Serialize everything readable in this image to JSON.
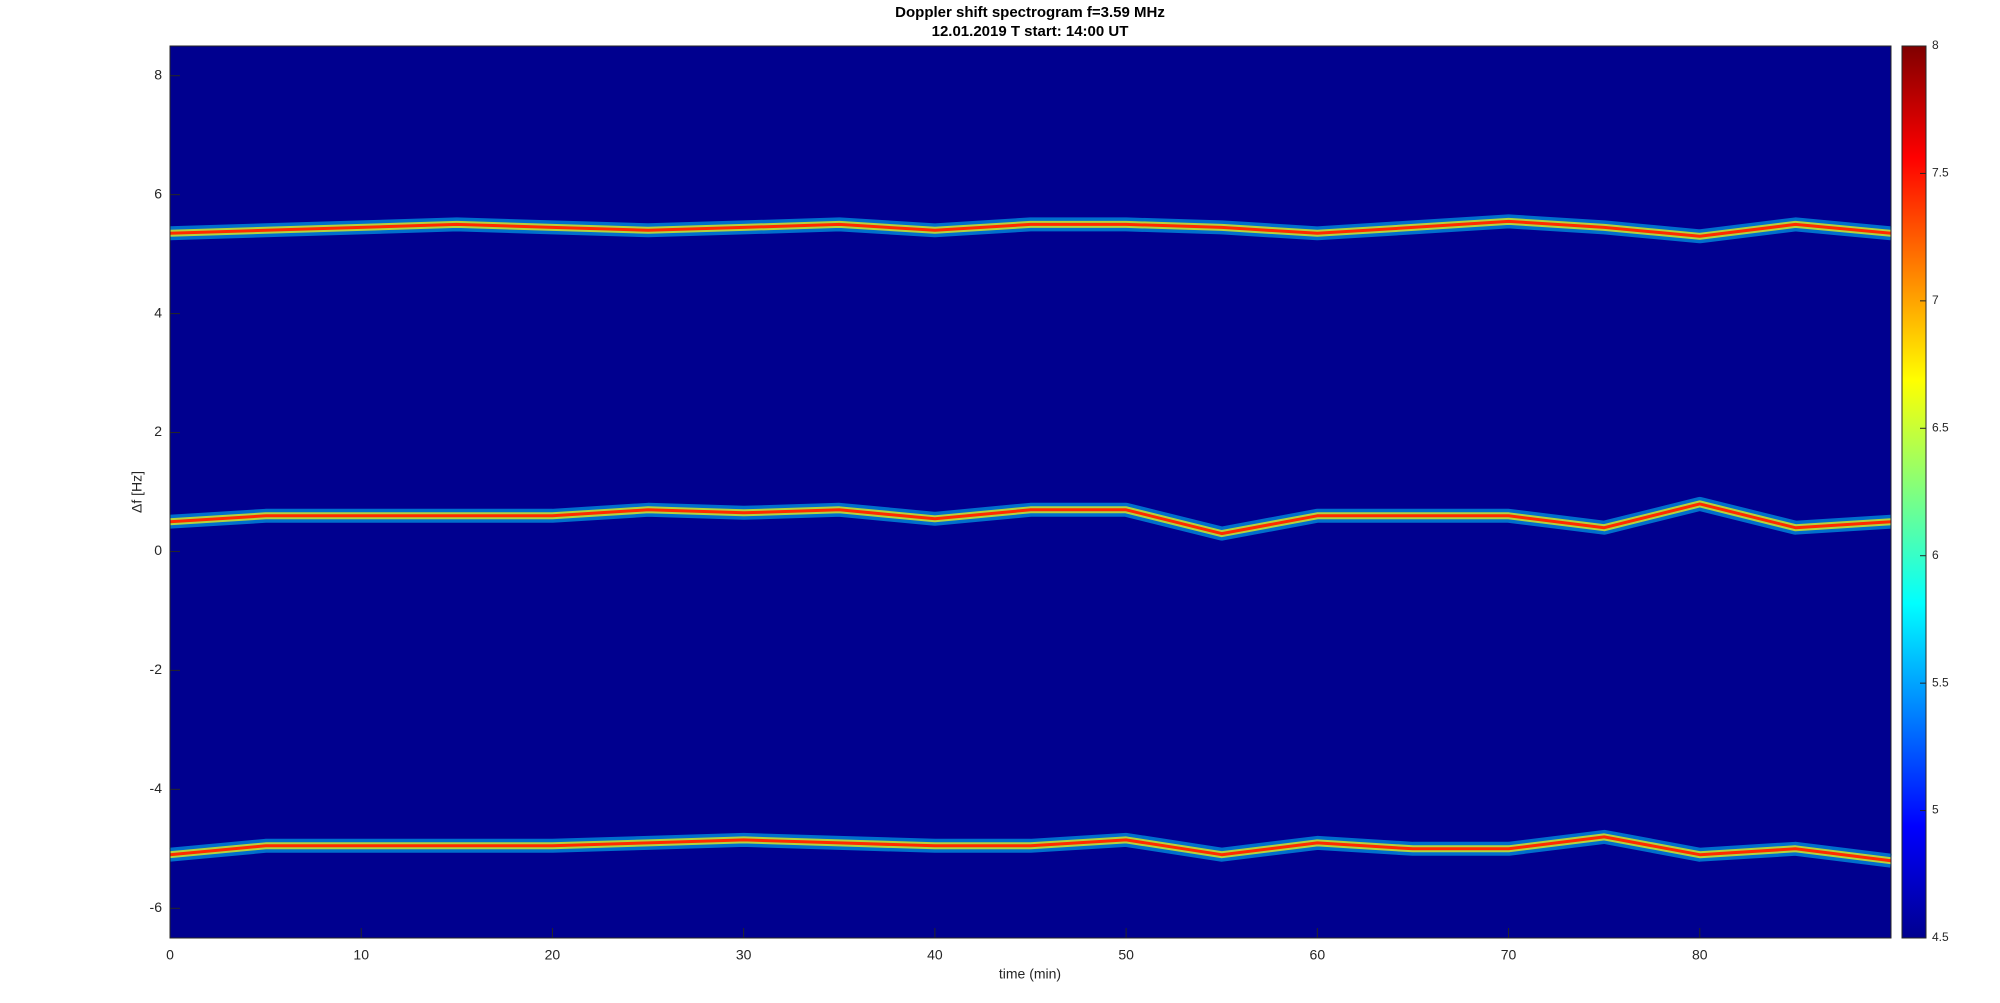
{
  "chart_data": {
    "type": "spectrogram",
    "title": "Doppler shift spectrogram f=3.59 MHz",
    "subtitle": "12.01.2019   T start: 14:00 UT",
    "xlabel": "time (min)",
    "ylabel": "Δf [Hz]",
    "x": [
      0,
      5,
      10,
      15,
      20,
      25,
      30,
      35,
      40,
      45,
      50,
      55,
      60,
      65,
      70,
      75,
      80,
      85,
      90
    ],
    "series": [
      {
        "color": "#ff2a00",
        "values": [
          5.35,
          5.4,
          5.45,
          5.5,
          5.45,
          5.4,
          5.45,
          5.5,
          5.4,
          5.5,
          5.5,
          5.45,
          5.35,
          5.45,
          5.55,
          5.45,
          5.3,
          5.5,
          5.35
        ]
      },
      {
        "color": "#ff2a00",
        "values": [
          0.5,
          0.6,
          0.6,
          0.6,
          0.6,
          0.7,
          0.65,
          0.7,
          0.55,
          0.7,
          0.7,
          0.3,
          0.6,
          0.6,
          0.6,
          0.4,
          0.8,
          0.4,
          0.5
        ]
      },
      {
        "color": "#ff2a00",
        "values": [
          -5.1,
          -4.95,
          -4.95,
          -4.95,
          -4.95,
          -4.9,
          -4.85,
          -4.9,
          -4.95,
          -4.95,
          -4.85,
          -5.1,
          -4.9,
          -5.0,
          -5.0,
          -4.8,
          -5.1,
          -5.0,
          -5.2
        ]
      }
    ],
    "xlim": [
      0,
      90
    ],
    "xticks": [
      0,
      10,
      20,
      30,
      40,
      50,
      60,
      70,
      80
    ],
    "ylim": [
      -6.5,
      8.5
    ],
    "yticks": [
      -6,
      -4,
      -2,
      0,
      2,
      4,
      6,
      8
    ],
    "clim": [
      4.5,
      8
    ],
    "cticks": [
      4.5,
      5,
      5.5,
      6,
      6.5,
      7,
      7.5,
      8
    ]
  }
}
